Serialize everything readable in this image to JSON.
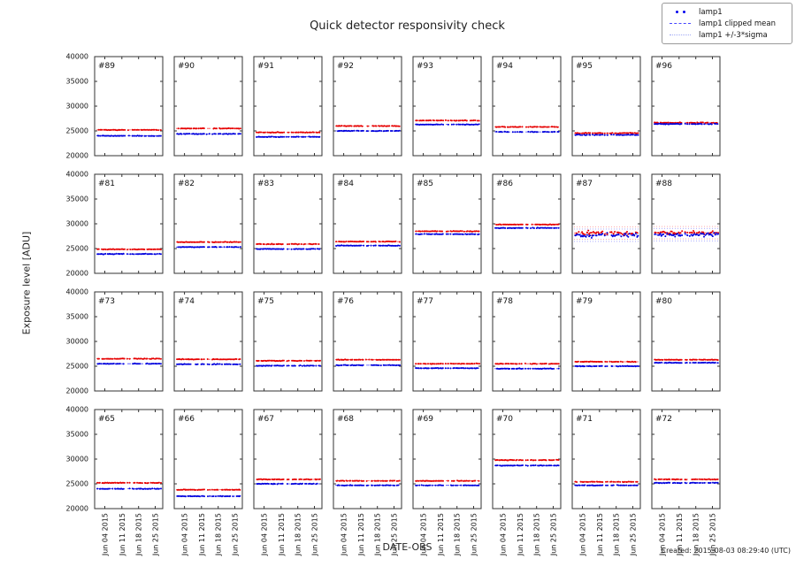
{
  "figure": {
    "title": "Quick detector responsivity check",
    "xlabel": "DATE-OBS",
    "ylabel": "Exposure level [ADU]",
    "creation": "Created: 2015-08-03 08:29:40 (UTC)"
  },
  "legend": {
    "entries": [
      {
        "label": "lamp1",
        "style": "dots",
        "color": "#0000ee"
      },
      {
        "label": "lamp1 clipped mean",
        "style": "dashed",
        "color": "#4646ff"
      },
      {
        "label": "lamp1 +/-3*sigma",
        "style": "dotted",
        "color": "#a0a8f5"
      }
    ]
  },
  "chart_data": {
    "type": "scatter",
    "title": "Quick detector responsivity check",
    "xlabel": "DATE-OBS",
    "ylabel": "Exposure level [ADU]",
    "ylim": [
      20000,
      40000
    ],
    "yticks": [
      20000,
      25000,
      30000,
      35000,
      40000
    ],
    "xticklabels": [
      "Jun 04 2015",
      "Jun 11 2015",
      "Jun 18 2015",
      "Jun 25 2015"
    ],
    "grid": {
      "rows": 4,
      "cols": 8
    },
    "colors": {
      "red_points": "#e60000",
      "blue_points": "#0000dd",
      "red_mean": "#ff2222",
      "blue_mean": "#2222ff",
      "red_sigma": "#ffa0a0",
      "blue_sigma": "#a0a0ff"
    },
    "sigma_band_adu": 1250,
    "panels": [
      {
        "id": "#89",
        "red_level": 25200,
        "blue_level": 24000,
        "spread": 55
      },
      {
        "id": "#90",
        "red_level": 25500,
        "blue_level": 24400,
        "spread": 55
      },
      {
        "id": "#91",
        "red_level": 24700,
        "blue_level": 23800,
        "spread": 55
      },
      {
        "id": "#92",
        "red_level": 26000,
        "blue_level": 25000,
        "spread": 55
      },
      {
        "id": "#93",
        "red_level": 27100,
        "blue_level": 26300,
        "spread": 55
      },
      {
        "id": "#94",
        "red_level": 25800,
        "blue_level": 24800,
        "spread": 55
      },
      {
        "id": "#95",
        "red_level": 24550,
        "blue_level": 24200,
        "spread": 70
      },
      {
        "id": "#96",
        "red_level": 26650,
        "blue_level": 26400,
        "spread": 70
      },
      {
        "id": "#81",
        "red_level": 24850,
        "blue_level": 23900,
        "spread": 55
      },
      {
        "id": "#82",
        "red_level": 26300,
        "blue_level": 25300,
        "spread": 55
      },
      {
        "id": "#83",
        "red_level": 25900,
        "blue_level": 24900,
        "spread": 55
      },
      {
        "id": "#84",
        "red_level": 26400,
        "blue_level": 25600,
        "spread": 55
      },
      {
        "id": "#85",
        "red_level": 28500,
        "blue_level": 27900,
        "spread": 55
      },
      {
        "id": "#86",
        "red_level": 29850,
        "blue_level": 29150,
        "spread": 55
      },
      {
        "id": "#87",
        "red_level": 28100,
        "blue_level": 27700,
        "spread": 430
      },
      {
        "id": "#88",
        "red_level": 28200,
        "blue_level": 27800,
        "spread": 400
      },
      {
        "id": "#73",
        "red_level": 26500,
        "blue_level": 25500,
        "spread": 55
      },
      {
        "id": "#74",
        "red_level": 26400,
        "blue_level": 25400,
        "spread": 55
      },
      {
        "id": "#75",
        "red_level": 26100,
        "blue_level": 25100,
        "spread": 55
      },
      {
        "id": "#76",
        "red_level": 26300,
        "blue_level": 25200,
        "spread": 55
      },
      {
        "id": "#77",
        "red_level": 25500,
        "blue_level": 24600,
        "spread": 55
      },
      {
        "id": "#78",
        "red_level": 25500,
        "blue_level": 24500,
        "spread": 55
      },
      {
        "id": "#79",
        "red_level": 25900,
        "blue_level": 25000,
        "spread": 55
      },
      {
        "id": "#80",
        "red_level": 26300,
        "blue_level": 25700,
        "spread": 55
      },
      {
        "id": "#65",
        "red_level": 25200,
        "blue_level": 24000,
        "spread": 55
      },
      {
        "id": "#66",
        "red_level": 23800,
        "blue_level": 22500,
        "spread": 55
      },
      {
        "id": "#67",
        "red_level": 25900,
        "blue_level": 25000,
        "spread": 55
      },
      {
        "id": "#68",
        "red_level": 25600,
        "blue_level": 24700,
        "spread": 55
      },
      {
        "id": "#69",
        "red_level": 25600,
        "blue_level": 24700,
        "spread": 55
      },
      {
        "id": "#70",
        "red_level": 29800,
        "blue_level": 28700,
        "spread": 55
      },
      {
        "id": "#71",
        "red_level": 25400,
        "blue_level": 24700,
        "spread": 55
      },
      {
        "id": "#72",
        "red_level": 25900,
        "blue_level": 25200,
        "spread": 55
      }
    ]
  }
}
